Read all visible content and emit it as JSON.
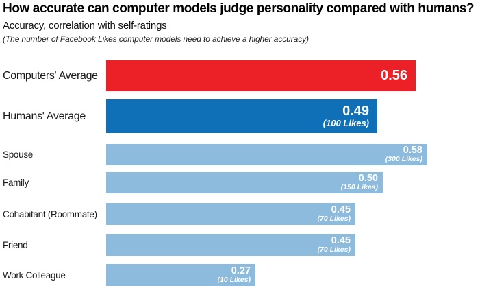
{
  "header": {
    "title": "How accurate can computer models judge personality compared with humans?",
    "subtitle": "Accuracy, correlation with self-ratings",
    "note": "(The number of Facebook Likes computer models need to achieve a higher accuracy)"
  },
  "colors": {
    "computers_bar": "#EC2127",
    "humans_bar": "#0F70B7",
    "comparison_bar": "#8CBBDD",
    "value_text": "#FFFFFF",
    "label_text": "#1A1A1A",
    "background": "#FFFFFF"
  },
  "chart_data": {
    "type": "bar",
    "orientation": "horizontal",
    "title": "How accurate can computer models judge personality compared with humans?",
    "subtitle": "Accuracy, correlation with self-ratings",
    "annotation": "(The number of Facebook Likes computer models need to achieve a higher accuracy)",
    "xlabel": "Accuracy (correlation with self-ratings)",
    "ylabel": "",
    "xlim": [
      0,
      0.62
    ],
    "grid": false,
    "legend": false,
    "categories": [
      "Computers' Average",
      "Humans' Average",
      "Spouse",
      "Family",
      "Cohabitant (Roommate)",
      "Friend",
      "Work Colleague"
    ],
    "values": [
      0.56,
      0.49,
      0.58,
      0.5,
      0.45,
      0.45,
      0.27
    ],
    "bars": [
      {
        "label": "Computers' Average",
        "value": 0.56,
        "value_label": "0.56",
        "likes_label": "",
        "color": "#EC2127",
        "size": "large"
      },
      {
        "label": "Humans' Average",
        "value": 0.49,
        "value_label": "0.49",
        "likes_label": "(100 Likes)",
        "color": "#0F70B7",
        "size": "large"
      },
      {
        "label": "Spouse",
        "value": 0.58,
        "value_label": "0.58",
        "likes_label": "(300 Likes)",
        "color": "#8CBBDD",
        "size": "small"
      },
      {
        "label": "Family",
        "value": 0.5,
        "value_label": "0.50",
        "likes_label": "(150 Likes)",
        "color": "#8CBBDD",
        "size": "small"
      },
      {
        "label": "Cohabitant (Roommate)",
        "value": 0.45,
        "value_label": "0.45",
        "likes_label": "(70 Likes)",
        "color": "#8CBBDD",
        "size": "small"
      },
      {
        "label": "Friend",
        "value": 0.45,
        "value_label": "0.45",
        "likes_label": "(70 Likes)",
        "color": "#8CBBDD",
        "size": "small"
      },
      {
        "label": "Work Colleague",
        "value": 0.27,
        "value_label": "0.27",
        "likes_label": "(10 Likes)",
        "color": "#8CBBDD",
        "size": "small"
      }
    ]
  }
}
